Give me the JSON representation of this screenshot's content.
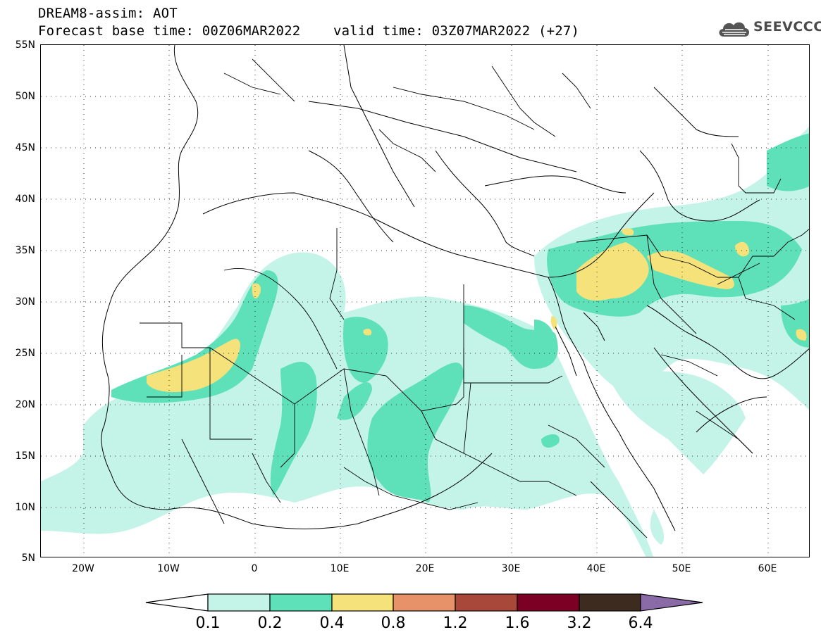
{
  "header": {
    "line1": "DREAM8-assim: AOT",
    "line2": "Forecast base time: 00Z06MAR2022    valid time: 03Z07MAR2022 (+27)"
  },
  "logo": {
    "text": "SEEVCCC",
    "icon": "cloud-icon"
  },
  "axes": {
    "y_ticks": [
      "55N",
      "50N",
      "45N",
      "40N",
      "35N",
      "30N",
      "25N",
      "20N",
      "15N",
      "10N",
      "5N"
    ],
    "x_ticks": [
      "20W",
      "10W",
      "0",
      "10E",
      "20E",
      "30E",
      "40E",
      "50E",
      "60E"
    ]
  },
  "legend": {
    "labels": [
      "0.1",
      "0.2",
      "0.4",
      "0.8",
      "1.2",
      "1.6",
      "3.2",
      "6.4"
    ],
    "colors": [
      "#ffffff",
      "#c4f3e8",
      "#5ee1b8",
      "#f5e27a",
      "#e8926a",
      "#a8483a",
      "#7c0024",
      "#3d2b1f",
      "#8b6aa8"
    ]
  },
  "colors": {
    "level_0.1": "#c4f3e8",
    "level_0.2": "#5ee1b8",
    "level_0.4": "#f5e27a"
  }
}
